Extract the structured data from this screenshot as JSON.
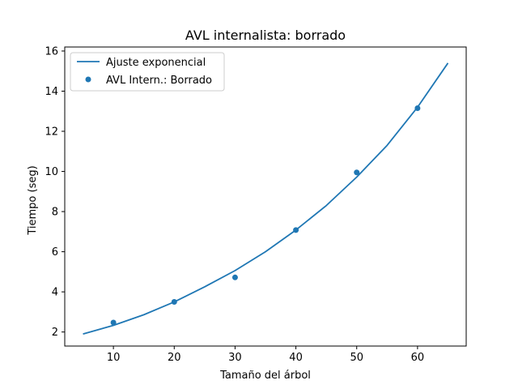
{
  "chart_data": {
    "type": "scatter",
    "title": "AVL internalista: borrado",
    "xlabel": "Tamaño del árbol",
    "ylabel": "Tiempo (seg)",
    "xlim": [
      2,
      68
    ],
    "ylim": [
      1.3,
      16.2
    ],
    "xticks": [
      10,
      20,
      30,
      40,
      50,
      60
    ],
    "yticks": [
      2,
      4,
      6,
      8,
      10,
      12,
      14,
      16
    ],
    "grid": false,
    "legend_position": "top-left",
    "series": [
      {
        "name": "Ajuste exponencial",
        "kind": "line",
        "color": "#1f77b4",
        "x": [
          5,
          10,
          15,
          20,
          25,
          30,
          35,
          40,
          45,
          50,
          55,
          60,
          65
        ],
        "y": [
          1.9,
          2.33,
          2.86,
          3.5,
          4.25,
          5.06,
          6.0,
          7.08,
          8.3,
          9.72,
          11.3,
          13.2,
          15.4
        ]
      },
      {
        "name": "AVL Intern.: Borrado",
        "kind": "scatter",
        "color": "#1f77b4",
        "x": [
          10,
          20,
          30,
          40,
          50,
          60
        ],
        "y": [
          2.47,
          3.5,
          4.72,
          7.08,
          9.95,
          13.15
        ]
      }
    ]
  }
}
